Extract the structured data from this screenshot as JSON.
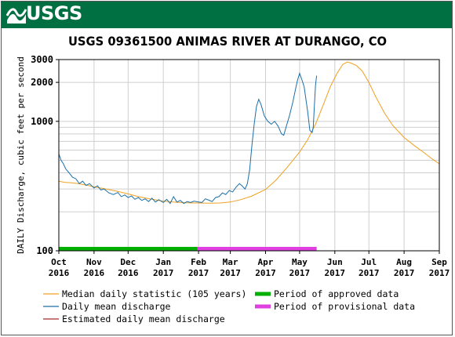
{
  "header": {
    "logo_text": "USGS",
    "banner_color": "#006f41"
  },
  "chart_data": {
    "type": "line",
    "title": "USGS 09361500 ANIMAS RIVER AT DURANGO, CO",
    "ylabel": "DAILY Discharge, cubic feet per second",
    "xlabel": "",
    "yscale": "log",
    "ylim": [
      100,
      3000
    ],
    "y_ticks": [
      "100",
      "1000",
      "2000",
      "3000"
    ],
    "x_domain": [
      "2016-10-01",
      "2017-09-01"
    ],
    "x_ticks": [
      {
        "date": "2016-10-01",
        "month": "Oct",
        "year": "2016"
      },
      {
        "date": "2016-11-01",
        "month": "Nov",
        "year": "2016"
      },
      {
        "date": "2016-12-01",
        "month": "Dec",
        "year": "2016"
      },
      {
        "date": "2017-01-01",
        "month": "Jan",
        "year": "2017"
      },
      {
        "date": "2017-02-01",
        "month": "Feb",
        "year": "2017"
      },
      {
        "date": "2017-03-01",
        "month": "Mar",
        "year": "2017"
      },
      {
        "date": "2017-04-01",
        "month": "Apr",
        "year": "2017"
      },
      {
        "date": "2017-05-01",
        "month": "May",
        "year": "2017"
      },
      {
        "date": "2017-06-01",
        "month": "Jun",
        "year": "2017"
      },
      {
        "date": "2017-07-01",
        "month": "Jul",
        "year": "2017"
      },
      {
        "date": "2017-08-01",
        "month": "Aug",
        "year": "2017"
      },
      {
        "date": "2017-09-01",
        "month": "Sep",
        "year": "2017"
      }
    ],
    "grid": true,
    "series": [
      {
        "name": "Median daily statistic (105 years)",
        "color": "#f0a020",
        "points": [
          [
            "2016-10-01",
            345
          ],
          [
            "2016-10-06",
            338
          ],
          [
            "2016-10-12",
            335
          ],
          [
            "2016-10-18",
            330
          ],
          [
            "2016-10-25",
            322
          ],
          [
            "2016-11-01",
            312
          ],
          [
            "2016-11-10",
            302
          ],
          [
            "2016-11-20",
            290
          ],
          [
            "2016-12-01",
            275
          ],
          [
            "2016-12-10",
            262
          ],
          [
            "2016-12-20",
            252
          ],
          [
            "2017-01-01",
            242
          ],
          [
            "2017-01-10",
            238
          ],
          [
            "2017-01-20",
            235
          ],
          [
            "2017-02-01",
            234
          ],
          [
            "2017-02-10",
            233
          ],
          [
            "2017-02-20",
            234
          ],
          [
            "2017-03-01",
            238
          ],
          [
            "2017-03-10",
            248
          ],
          [
            "2017-03-20",
            265
          ],
          [
            "2017-04-01",
            298
          ],
          [
            "2017-04-10",
            350
          ],
          [
            "2017-04-20",
            440
          ],
          [
            "2017-05-01",
            580
          ],
          [
            "2017-05-08",
            720
          ],
          [
            "2017-05-15",
            950
          ],
          [
            "2017-05-22",
            1350
          ],
          [
            "2017-05-28",
            1850
          ],
          [
            "2017-06-03",
            2350
          ],
          [
            "2017-06-08",
            2750
          ],
          [
            "2017-06-12",
            2870
          ],
          [
            "2017-06-15",
            2820
          ],
          [
            "2017-06-20",
            2700
          ],
          [
            "2017-06-25",
            2450
          ],
          [
            "2017-07-01",
            2000
          ],
          [
            "2017-07-07",
            1550
          ],
          [
            "2017-07-15",
            1150
          ],
          [
            "2017-07-22",
            930
          ],
          [
            "2017-08-01",
            750
          ],
          [
            "2017-08-10",
            650
          ],
          [
            "2017-08-20",
            560
          ],
          [
            "2017-08-26",
            510
          ],
          [
            "2017-09-01",
            470
          ]
        ]
      },
      {
        "name": "Daily mean discharge",
        "color": "#1a6fa8",
        "points": [
          [
            "2016-10-01",
            560
          ],
          [
            "2016-10-03",
            500
          ],
          [
            "2016-10-05",
            470
          ],
          [
            "2016-10-07",
            430
          ],
          [
            "2016-10-10",
            400
          ],
          [
            "2016-10-13",
            370
          ],
          [
            "2016-10-16",
            360
          ],
          [
            "2016-10-19",
            330
          ],
          [
            "2016-10-22",
            345
          ],
          [
            "2016-10-25",
            320
          ],
          [
            "2016-10-28",
            330
          ],
          [
            "2016-11-01",
            305
          ],
          [
            "2016-11-04",
            318
          ],
          [
            "2016-11-07",
            295
          ],
          [
            "2016-11-10",
            300
          ],
          [
            "2016-11-14",
            280
          ],
          [
            "2016-11-18",
            272
          ],
          [
            "2016-11-22",
            282
          ],
          [
            "2016-11-25",
            262
          ],
          [
            "2016-11-28",
            270
          ],
          [
            "2016-12-01",
            258
          ],
          [
            "2016-12-04",
            265
          ],
          [
            "2016-12-07",
            250
          ],
          [
            "2016-12-10",
            258
          ],
          [
            "2016-12-13",
            245
          ],
          [
            "2016-12-16",
            252
          ],
          [
            "2016-12-19",
            240
          ],
          [
            "2016-12-22",
            255
          ],
          [
            "2016-12-25",
            238
          ],
          [
            "2016-12-28",
            248
          ],
          [
            "2017-01-01",
            236
          ],
          [
            "2017-01-04",
            250
          ],
          [
            "2017-01-07",
            232
          ],
          [
            "2017-01-10",
            262
          ],
          [
            "2017-01-13",
            238
          ],
          [
            "2017-01-16",
            245
          ],
          [
            "2017-01-19",
            232
          ],
          [
            "2017-01-22",
            240
          ],
          [
            "2017-01-25",
            236
          ],
          [
            "2017-01-28",
            242
          ],
          [
            "2017-02-01",
            238
          ],
          [
            "2017-02-04",
            236
          ],
          [
            "2017-02-07",
            252
          ],
          [
            "2017-02-10",
            246
          ],
          [
            "2017-02-13",
            240
          ],
          [
            "2017-02-16",
            258
          ],
          [
            "2017-02-19",
            262
          ],
          [
            "2017-02-22",
            280
          ],
          [
            "2017-02-25",
            272
          ],
          [
            "2017-02-28",
            292
          ],
          [
            "2017-03-03",
            285
          ],
          [
            "2017-03-06",
            310
          ],
          [
            "2017-03-09",
            330
          ],
          [
            "2017-03-11",
            320
          ],
          [
            "2017-03-14",
            300
          ],
          [
            "2017-03-16",
            330
          ],
          [
            "2017-03-18",
            420
          ],
          [
            "2017-03-20",
            650
          ],
          [
            "2017-03-22",
            950
          ],
          [
            "2017-03-24",
            1300
          ],
          [
            "2017-03-26",
            1480
          ],
          [
            "2017-03-28",
            1350
          ],
          [
            "2017-03-31",
            1100
          ],
          [
            "2017-04-03",
            1000
          ],
          [
            "2017-04-06",
            950
          ],
          [
            "2017-04-09",
            1000
          ],
          [
            "2017-04-12",
            920
          ],
          [
            "2017-04-15",
            800
          ],
          [
            "2017-04-17",
            780
          ],
          [
            "2017-04-19",
            900
          ],
          [
            "2017-04-22",
            1100
          ],
          [
            "2017-04-25",
            1400
          ],
          [
            "2017-04-27",
            1700
          ],
          [
            "2017-04-29",
            2050
          ],
          [
            "2017-05-01",
            2350
          ],
          [
            "2017-05-03",
            2100
          ],
          [
            "2017-05-05",
            1850
          ],
          [
            "2017-05-08",
            1200
          ],
          [
            "2017-05-10",
            850
          ],
          [
            "2017-05-12",
            820
          ],
          [
            "2017-05-13",
            900
          ],
          [
            "2017-05-14",
            1300
          ],
          [
            "2017-05-15",
            1900
          ],
          [
            "2017-05-16",
            2250
          ]
        ]
      },
      {
        "name": "Estimated daily mean discharge",
        "color": "#a52a2a",
        "points": []
      }
    ],
    "periods": [
      {
        "name": "Period of approved data",
        "color": "#00b000",
        "start": "2016-10-01",
        "end": "2017-01-31"
      },
      {
        "name": "Period of provisional data",
        "color": "#e040e0",
        "start": "2017-01-31",
        "end": "2017-05-16"
      }
    ],
    "legend_position": "bottom"
  }
}
